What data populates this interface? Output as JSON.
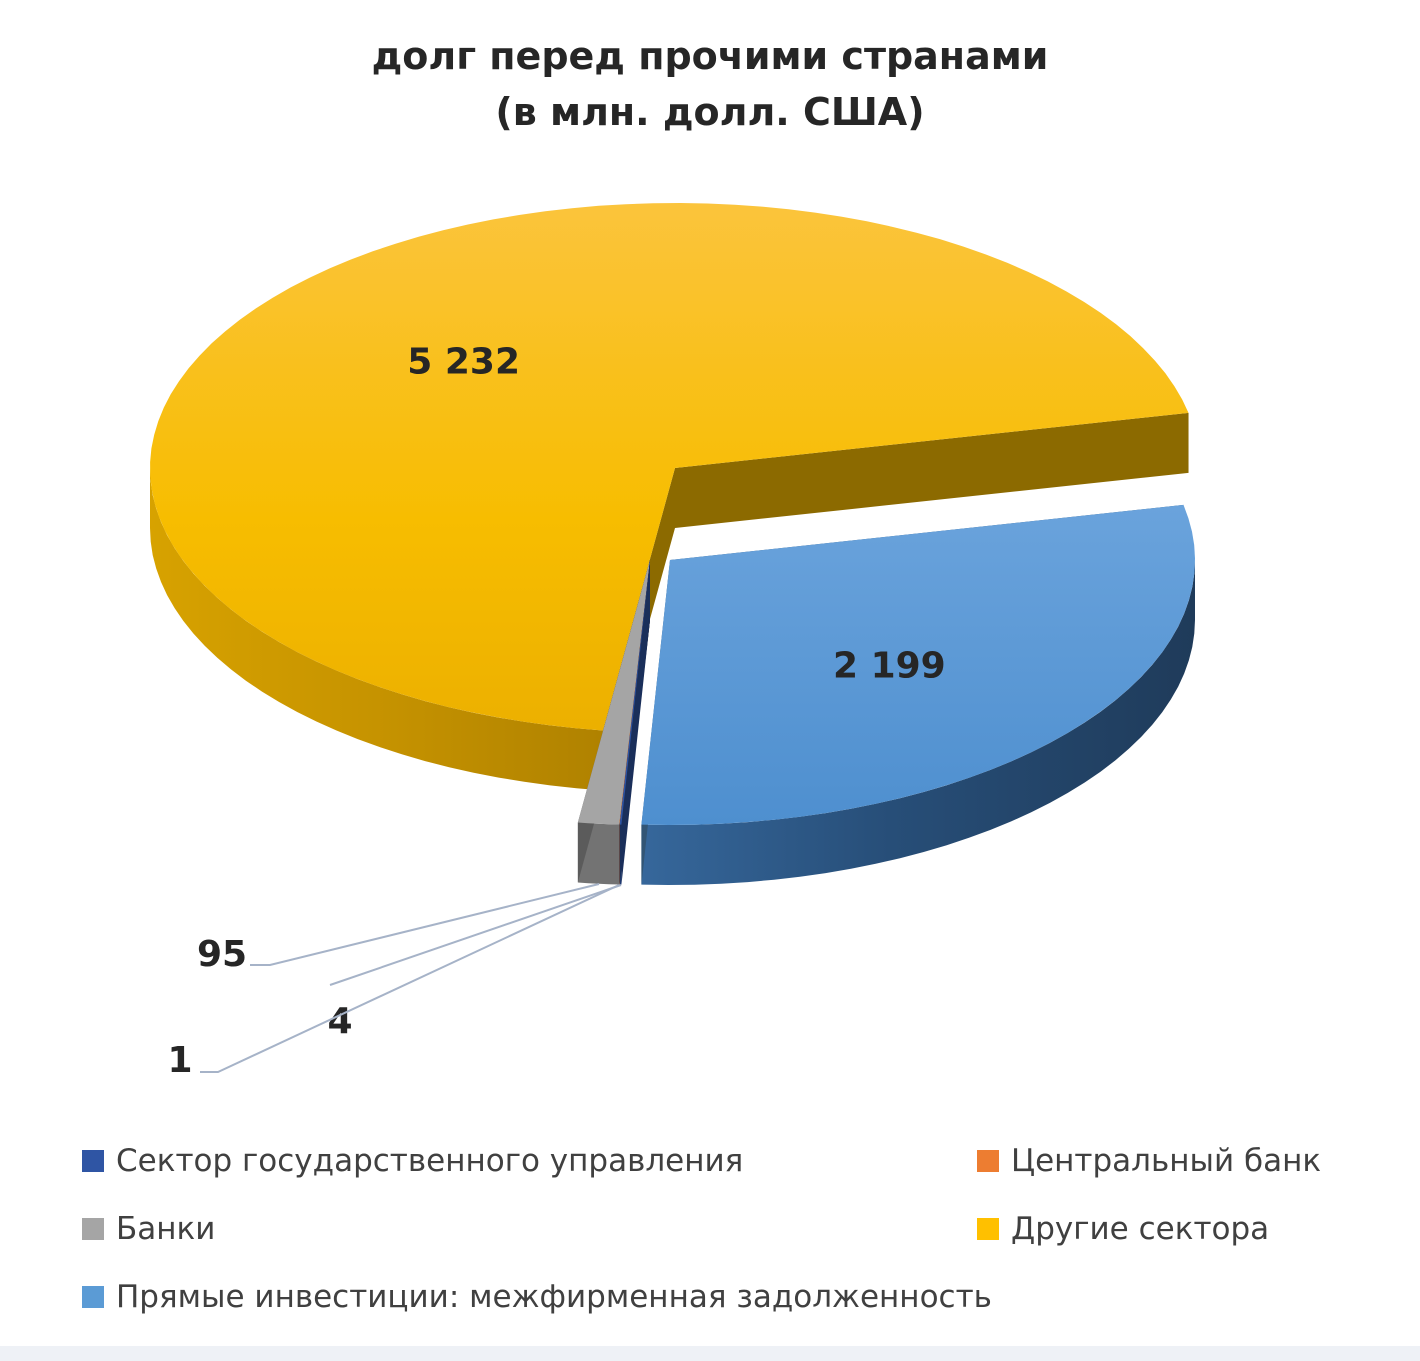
{
  "chart_data": {
    "type": "pie",
    "title": "долг перед прочими странами",
    "subtitle": "(в млн. долл. США)",
    "slices": [
      {
        "name": "Сектор государственного управления",
        "value": 4,
        "label": "4",
        "color": "#2f55a4"
      },
      {
        "name": "Центральный банк",
        "value": 1,
        "label": "1",
        "color": "#ed7d31"
      },
      {
        "name": "Банки",
        "value": 95,
        "label": "95",
        "color": "#a5a5a5"
      },
      {
        "name": "Другие сектора",
        "value": 5232,
        "label": "5 232",
        "color": "#ffc000"
      },
      {
        "name": "Прямые инвестиции: межфирменная задолженность",
        "value": 2199,
        "label": "2 199",
        "color": "#5b9bd5"
      }
    ],
    "legend_position": "bottom",
    "style": "3d-exploded"
  },
  "legend": [
    {
      "label": "Сектор государственного управления",
      "color": "#2f55a4"
    },
    {
      "label": "Центральный банк",
      "color": "#ed7d31"
    },
    {
      "label": "Банки",
      "color": "#a5a5a5"
    },
    {
      "label": "Другие сектора",
      "color": "#ffc000"
    },
    {
      "label": "Прямые инвестиции: межфирменная задолженность",
      "color": "#5b9bd5"
    }
  ]
}
